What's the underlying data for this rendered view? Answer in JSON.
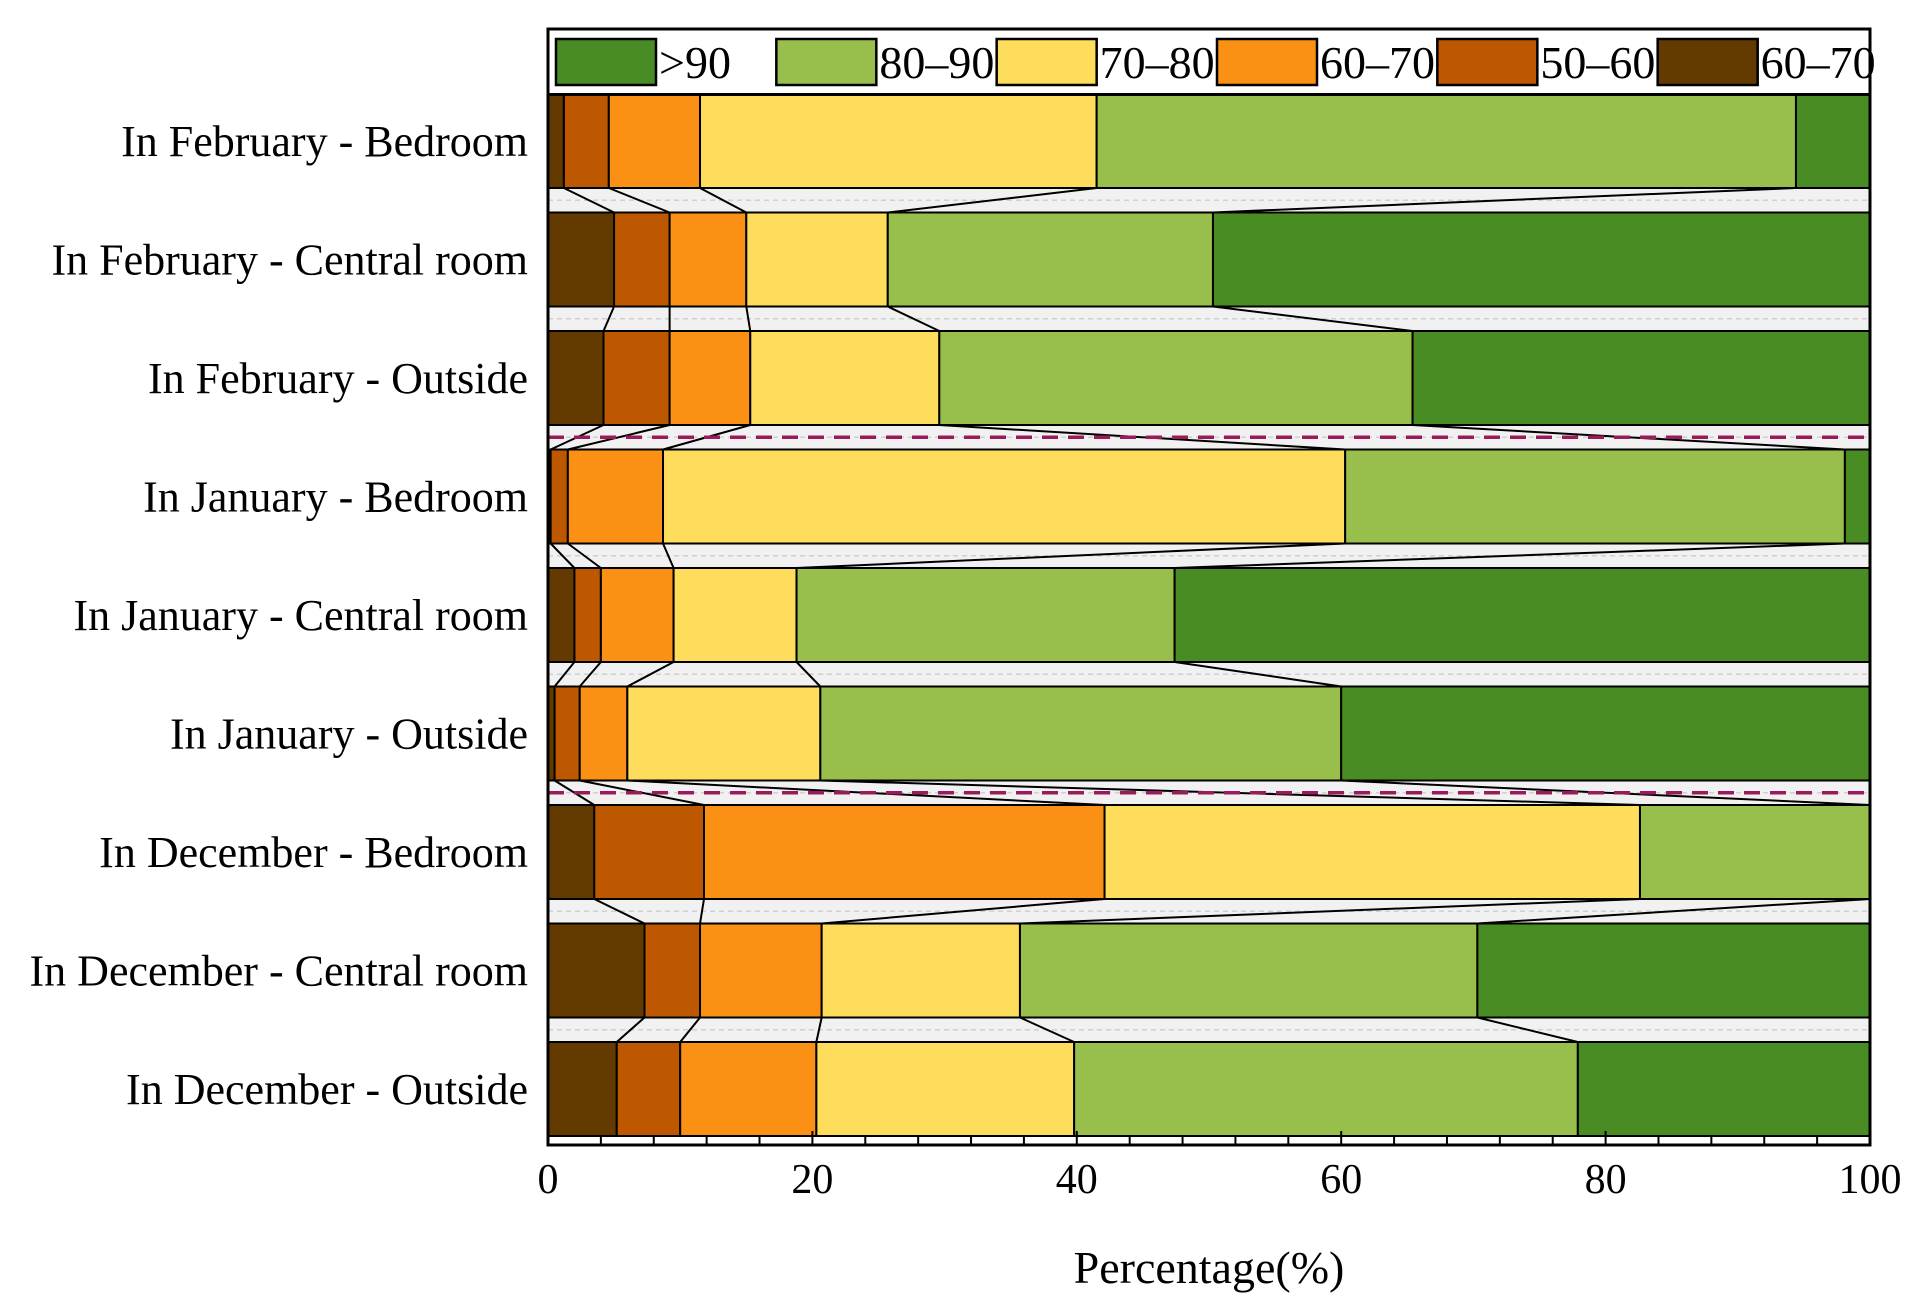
{
  "chart_data": {
    "type": "bar",
    "orientation": "horizontal",
    "stacked": true,
    "percent": true,
    "title": "",
    "xlabel": "Percentage(%)",
    "ylabel": "",
    "xlim": [
      0,
      100
    ],
    "x_ticks": [
      0,
      20,
      40,
      60,
      80,
      100
    ],
    "legend_position": "top",
    "categories": [
      "In February - Bedroom",
      "In February -  Central room",
      "In February - Outside",
      "In January - Bedroom",
      "In January - Central room",
      "In January - Outside",
      "In December - Bedroom",
      "In December - Central room",
      "In December - Outside"
    ],
    "group_separators_after": [
      2,
      5
    ],
    "series": [
      {
        "name": "60–70",
        "color": "#633a00",
        "values": [
          1.2,
          5.0,
          4.2,
          0.2,
          2.0,
          0.5,
          3.5,
          7.3,
          5.2
        ]
      },
      {
        "name": "50–60",
        "color": "#bd5700",
        "values": [
          3.4,
          4.2,
          5.0,
          1.3,
          2.0,
          1.9,
          8.3,
          4.2,
          4.8
        ]
      },
      {
        "name": "60–70",
        "color": "#fa9114",
        "values": [
          6.9,
          5.8,
          6.1,
          7.2,
          5.5,
          3.6,
          30.3,
          9.2,
          10.3
        ]
      },
      {
        "name": "70–80",
        "color": "#fedc5c",
        "values": [
          30.0,
          10.7,
          14.3,
          51.6,
          9.3,
          14.6,
          40.5,
          15.0,
          19.5
        ]
      },
      {
        "name": "80–90",
        "color": "#98bf4c",
        "values": [
          52.9,
          24.6,
          35.8,
          37.8,
          28.6,
          39.4,
          17.4,
          34.6,
          38.1
        ]
      },
      {
        "name": ">90",
        "color": "#4a8c24",
        "values": [
          5.6,
          49.7,
          34.6,
          1.9,
          52.6,
          40.0,
          0.0,
          29.7,
          22.1
        ]
      }
    ],
    "legend_order": [
      5,
      4,
      3,
      2,
      1,
      0
    ]
  }
}
